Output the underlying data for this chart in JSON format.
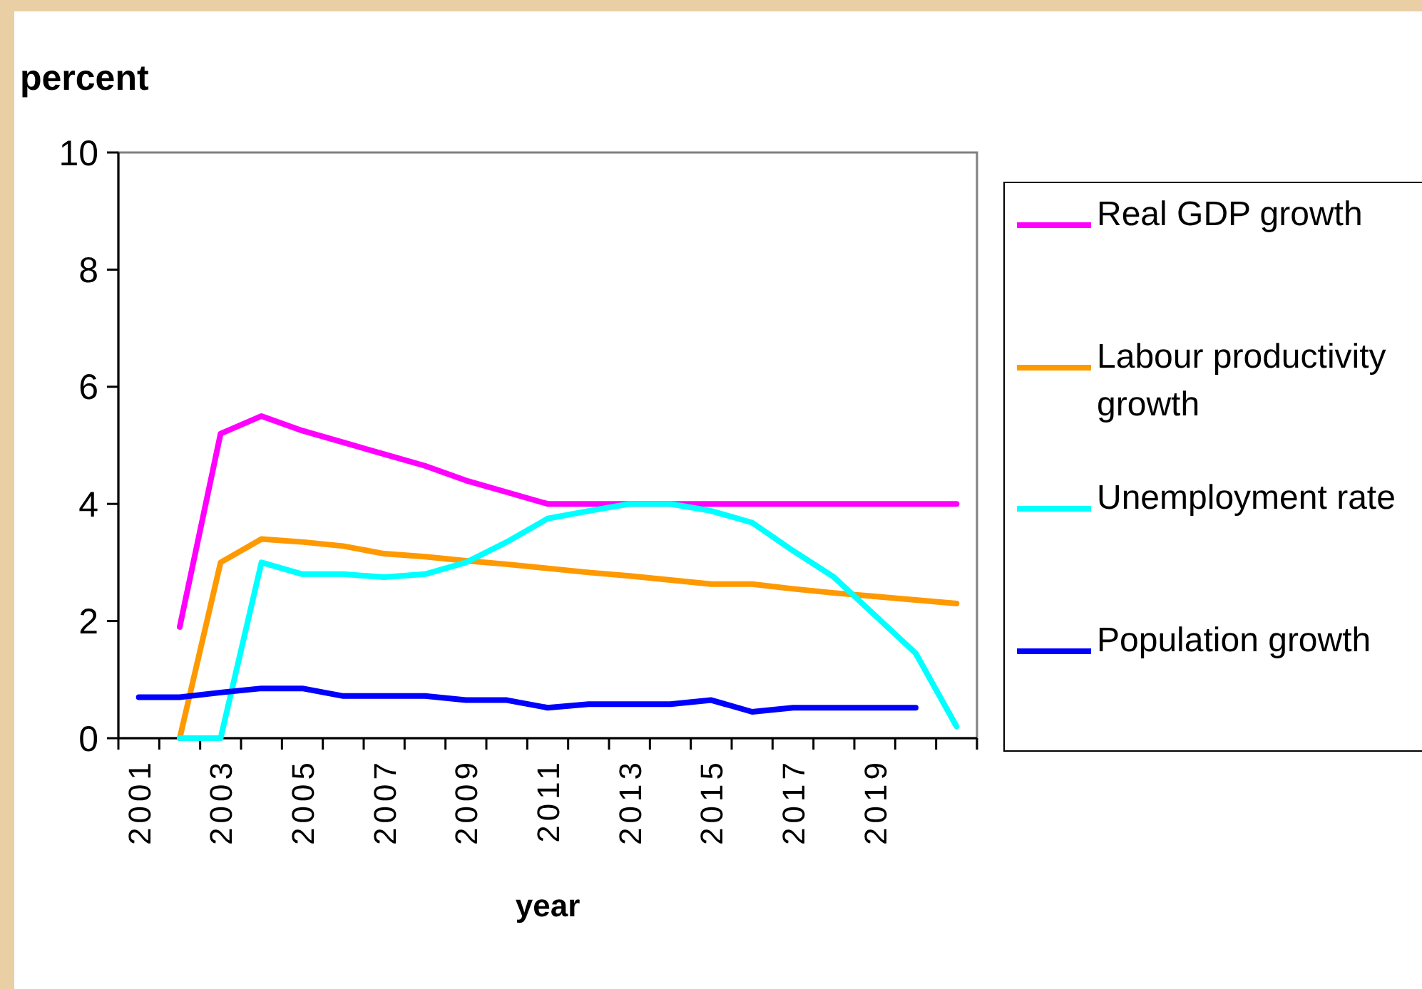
{
  "chart_data": {
    "type": "line",
    "ylabel": "percent",
    "xlabel": "year",
    "categories": [
      "2001",
      null,
      "2003",
      null,
      "2005",
      null,
      "2007",
      null,
      "2009",
      null,
      "2011",
      null,
      "2013",
      null,
      "2015",
      null,
      "2017",
      null,
      "2019",
      null,
      null
    ],
    "series": [
      {
        "name": "Real GDP growth",
        "color": "#ff00ff",
        "values": [
          null,
          1.9,
          5.2,
          5.5,
          5.25,
          5.05,
          4.85,
          4.65,
          4.4,
          4.2,
          4.0,
          4.0,
          4.0,
          4.0,
          4.0,
          4.0,
          4.0,
          4.0,
          4.0,
          4.0,
          4.0
        ]
      },
      {
        "name": "Labour productivity growth",
        "color": "#ff9900",
        "values": [
          null,
          0,
          3.0,
          3.4,
          3.35,
          3.28,
          3.15,
          3.1,
          3.03,
          2.97,
          2.9,
          2.83,
          2.77,
          2.7,
          2.63,
          2.63,
          2.55,
          2.48,
          2.42,
          2.36,
          2.3
        ]
      },
      {
        "name": "Unemployment rate",
        "color": "#00ffff",
        "values": [
          null,
          0,
          0,
          3.0,
          2.8,
          2.8,
          2.75,
          2.8,
          3.0,
          3.35,
          3.75,
          3.88,
          4.0,
          4.0,
          3.88,
          3.68,
          3.2,
          2.75,
          2.1,
          1.45,
          0.2
        ]
      },
      {
        "name": "Population growth",
        "color": "#0000ff",
        "values": [
          0.7,
          0.7,
          0.78,
          0.85,
          0.85,
          0.72,
          0.72,
          0.72,
          0.65,
          0.65,
          0.52,
          0.58,
          0.58,
          0.58,
          0.65,
          0.45,
          0.52,
          0.52,
          0.52,
          0.52,
          null
        ]
      }
    ],
    "ylim": [
      0,
      10
    ],
    "yticks": [
      0,
      2,
      4,
      6,
      8,
      10
    ],
    "grid": false,
    "legend": "right",
    "marker": "none",
    "line_style": "solid"
  }
}
